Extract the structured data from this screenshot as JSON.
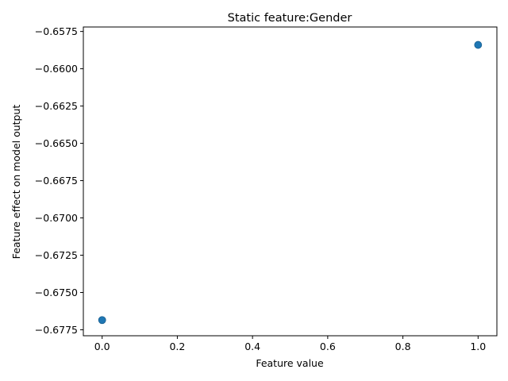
{
  "chart_data": {
    "type": "scatter",
    "title": "Static feature:Gender",
    "xlabel": "Feature value",
    "ylabel": "Feature effect on model output",
    "xlim": [
      -0.05,
      1.05
    ],
    "ylim": [
      -0.6779,
      -0.6572
    ],
    "xticks": [
      0.0,
      0.2,
      0.4,
      0.6,
      0.8,
      1.0
    ],
    "xtick_labels": [
      "0.0",
      "0.2",
      "0.4",
      "0.6",
      "0.8",
      "1.0"
    ],
    "yticks": [
      -0.6775,
      -0.675,
      -0.6725,
      -0.67,
      -0.6675,
      -0.665,
      -0.6625,
      -0.66,
      -0.6575
    ],
    "ytick_labels": [
      "−0.6775",
      "−0.6750",
      "−0.6725",
      "−0.6700",
      "−0.6675",
      "−0.6650",
      "−0.6625",
      "−0.6600",
      "−0.6575"
    ],
    "grid": false,
    "series": [
      {
        "color": "#1f77b4",
        "points": [
          {
            "x": 0.0,
            "y": -0.67685
          },
          {
            "x": 1.0,
            "y": -0.6584
          }
        ]
      }
    ]
  }
}
